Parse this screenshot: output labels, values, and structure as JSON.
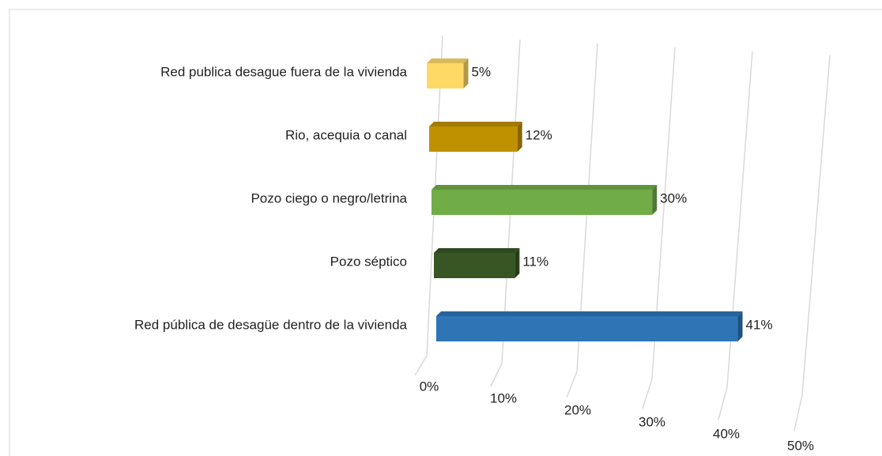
{
  "chart_data": {
    "type": "bar3d_horizontal",
    "categories": [
      "Red publica  desague fuera de la vivienda",
      "Rio, acequia  o canal",
      "Pozo ciego o negro/letrina",
      "Pozo séptico",
      "Red pública de desagüe dentro de la vivienda"
    ],
    "values": [
      5,
      12,
      30,
      11,
      41
    ],
    "value_labels": [
      "5%",
      "12%",
      "30%",
      "11%",
      "41%"
    ],
    "colors": [
      "#ffd966",
      "#bf9000",
      "#70ad47",
      "#375623",
      "#2e75b6"
    ],
    "xlim": [
      0,
      50
    ],
    "xticks": [
      {
        "value": 0,
        "label": "0%"
      },
      {
        "value": 10,
        "label": "10%"
      },
      {
        "value": 20,
        "label": "20%"
      },
      {
        "value": 30,
        "label": "30%"
      },
      {
        "value": 40,
        "label": "40%"
      },
      {
        "value": 50,
        "label": "50%"
      }
    ],
    "grid": true
  }
}
